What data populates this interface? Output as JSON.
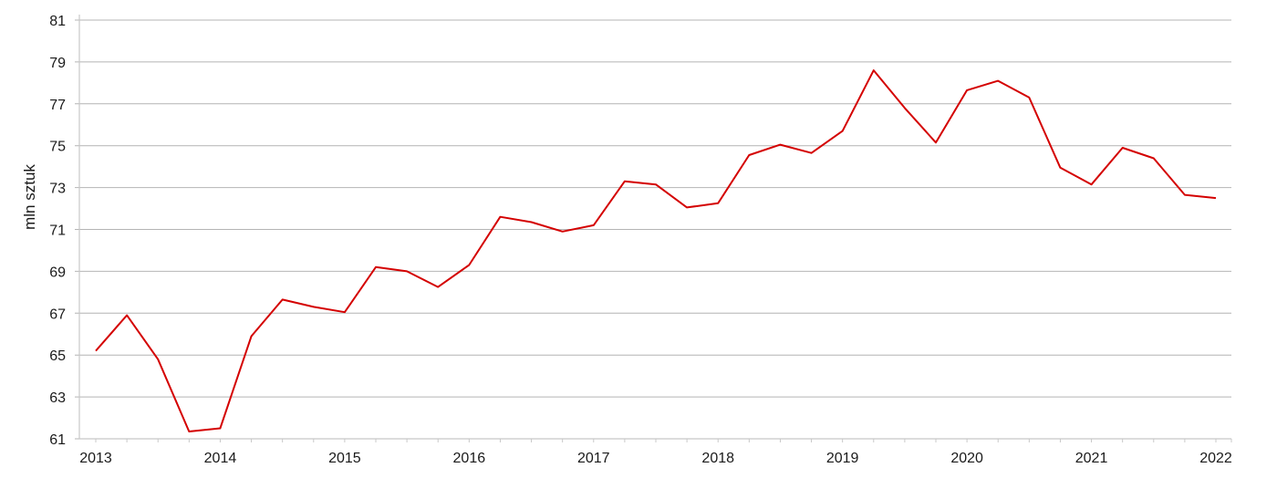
{
  "chart_data": {
    "type": "line",
    "title": "",
    "xlabel": "",
    "ylabel": "mln sztuk",
    "ylim": [
      61,
      81
    ],
    "yticks": [
      61,
      63,
      65,
      67,
      69,
      71,
      73,
      75,
      77,
      79,
      81
    ],
    "xtick_labels": [
      "2013",
      "2014",
      "2015",
      "2016",
      "2017",
      "2018",
      "2019",
      "2020",
      "2021",
      "2022"
    ],
    "x_frequency": "quarterly",
    "grid": "horizontal",
    "line_color": "#d40000",
    "series": [
      {
        "values": [
          65.2,
          66.9,
          64.8,
          61.35,
          61.5,
          65.9,
          67.65,
          67.3,
          67.05,
          69.2,
          69.0,
          68.25,
          69.3,
          71.6,
          71.35,
          70.9,
          71.2,
          73.3,
          73.15,
          72.05,
          72.25,
          74.55,
          75.05,
          74.65,
          75.7,
          78.6,
          76.8,
          75.15,
          77.65,
          78.1,
          77.3,
          73.95,
          73.15,
          74.9,
          74.4,
          72.65,
          72.5
        ]
      }
    ]
  }
}
